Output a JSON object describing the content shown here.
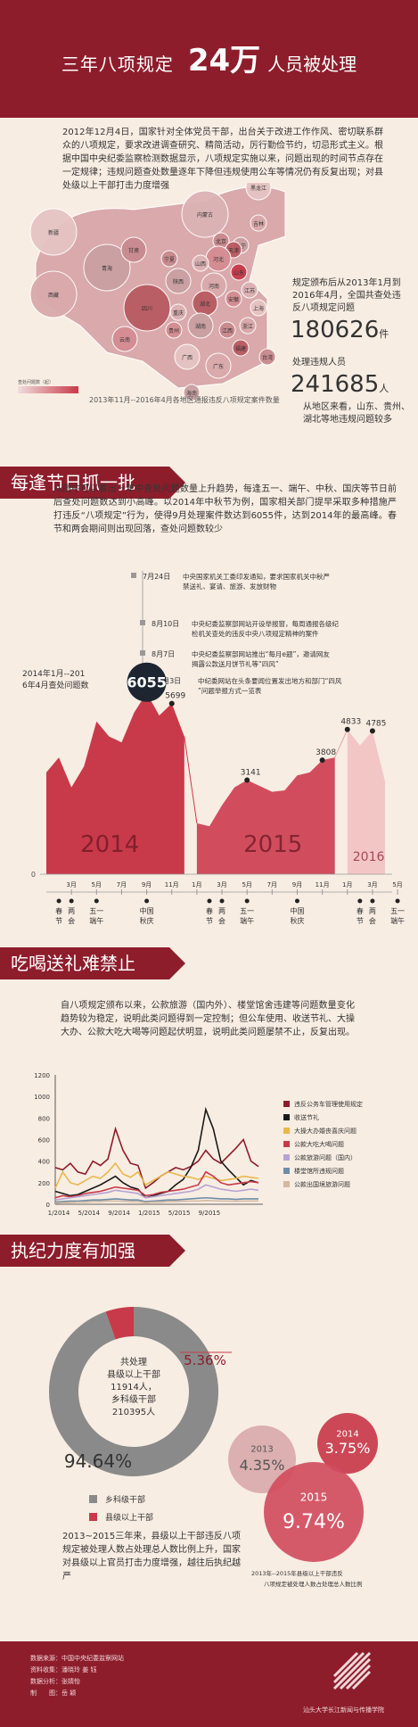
{
  "banner": {
    "title_left": "三年八项规定",
    "title_number": "24万",
    "title_right": "人员被处理"
  },
  "intro": {
    "text": "2012年12月4日，国家针对全体党员干部，出台关于改进工作作风、密切联系群众的八项规定，要求改进调查研究、精简活动，厉行勤俭节约，切忌形式主义。根据中国中央纪委监察检测数据显示，八项规定实施以来，问题出现的时间节点存在一定规律；违规问题查处数量逐年下降但违规使用公车等情况仍有反复出现；对县处级以上干部打击力度增强"
  },
  "map": {
    "legend_label": "查处问题数（起）",
    "caption": "2013年11月--2016年4月各地区通报违反八项规定案件数量",
    "provinces": [
      "新疆",
      "西藏",
      "青海",
      "甘肃",
      "四川",
      "云南",
      "内蒙古",
      "黑龙江",
      "吉林",
      "辽宁",
      "北京",
      "天津",
      "河北",
      "山西",
      "山东",
      "河南",
      "陕西",
      "宁夏",
      "湖北",
      "安徽",
      "江苏",
      "上海",
      "浙江",
      "湖南",
      "江西",
      "福建",
      "贵州",
      "重庆",
      "广西",
      "广东",
      "海南",
      "台湾"
    ],
    "stat1_label": "规定颁布后从2013年1月到2016年4月，全国共查处违反八项规定问题",
    "stat1_value": "180626",
    "stat1_unit": "件",
    "stat2_label": "处理违规人员",
    "stat2_value": "241685",
    "stat2_unit": "人",
    "stat3_label": "从地区来看，山东、贵州、湖北等地违规问题较多"
  },
  "section1": {
    "heading": "每逢节日抓一批",
    "text": "从图中可以看出一年中查处问题数量上升趋势，每逢五一、端午、中秋、国庆等节日前后查处问题数达到小高峰。以2014年中秋节为例，国家相关部门提早采取多种措施严打违反“八项规定”行为，使得9月处理案件数达到6055件，达到2014年的最高峰。春节和两会期间则出现回落，查处问题数较少",
    "events": [
      {
        "date": "7月24日",
        "text": "中央国家机关工委印发通知，要求国家机关中秋严禁送礼、宴请、旅游、发放财物"
      },
      {
        "date": "8月10日",
        "text": "中央纪委监察部网站开设举报窗，每周通报各级纪检机关查处的违反中央八项规定精神的案件"
      },
      {
        "date": "8月7日",
        "text": "中央纪委监察部网站推出“每月e题”，邀请网友揭露公款送月饼节礼等“四风”"
      },
      {
        "date": "9月3日",
        "text": "中纪委网站在头条要闻位置发出地方和部门“四风”问题举报方式一览表"
      }
    ]
  },
  "chart_data": [
    {
      "type": "area",
      "title": "2014年1月--2016年4月查处问题数",
      "x": [
        "2014-01",
        "2014-02",
        "2014-03",
        "2014-04",
        "2014-05",
        "2014-06",
        "2014-07",
        "2014-08",
        "2014-09",
        "2014-10",
        "2014-11",
        "2014-12",
        "2015-01",
        "2015-02",
        "2015-03",
        "2015-04",
        "2015-05",
        "2015-06",
        "2015-07",
        "2015-08",
        "2015-09",
        "2015-10",
        "2015-11",
        "2015-12",
        "2016-01",
        "2016-02",
        "2016-03",
        "2016-04"
      ],
      "values": [
        3400,
        3900,
        2900,
        3600,
        5100,
        4600,
        4400,
        5400,
        6055,
        5300,
        5699,
        4600,
        1700,
        1600,
        2300,
        2900,
        3141,
        2950,
        2750,
        2800,
        3300,
        3400,
        3808,
        3900,
        4833,
        4300,
        4785,
        3100
      ],
      "ylim": [
        0,
        7000
      ],
      "labeled_points": [
        {
          "x": "2014-09",
          "value": "6055"
        },
        {
          "x": "2014-11",
          "value": "5699"
        },
        {
          "x": "2015-05",
          "value": "3141"
        },
        {
          "x": "2015-11",
          "value": "3808"
        },
        {
          "x": "2016-01",
          "value": "4833"
        },
        {
          "x": "2016-03",
          "value": "4785"
        }
      ],
      "year_labels": [
        "2014",
        "2015",
        "2016"
      ],
      "x_ticks": [
        "3月",
        "5月",
        "7月",
        "9月",
        "11月",
        "1月",
        "3月",
        "5月",
        "7月",
        "9月",
        "11月",
        "1月",
        "3月",
        "5月"
      ],
      "y_tick": "0",
      "holiday_labels": [
        {
          "x": "2014-02",
          "label": "春节"
        },
        {
          "x": "2014-03",
          "label": "两会"
        },
        {
          "x": "2014-05",
          "label": "五一端午"
        },
        {
          "x": "2014-09",
          "label": "中国秋庆"
        },
        {
          "x": "2015-02",
          "label": "春节"
        },
        {
          "x": "2015-03",
          "label": "两会"
        },
        {
          "x": "2015-05",
          "label": "五一端午"
        },
        {
          "x": "2015-09",
          "label": "中国秋庆"
        },
        {
          "x": "2016-02",
          "label": "春节"
        },
        {
          "x": "2016-03",
          "label": "两会"
        },
        {
          "x": "2016-05",
          "label": "五一端午"
        }
      ]
    },
    {
      "type": "line",
      "x_ticks": [
        "1/2014",
        "5/2014",
        "9/2014",
        "1/2015",
        "5/2015",
        "9/2015"
      ],
      "yticks": [
        0,
        200,
        400,
        600,
        800,
        1000,
        1200
      ],
      "ylim": [
        0,
        1200
      ],
      "series": [
        {
          "name": "违反公务车管理使用规定",
          "color": "#8e1d2c",
          "values": [
            340,
            320,
            380,
            300,
            280,
            400,
            360,
            420,
            700,
            500,
            380,
            360,
            150,
            200,
            260,
            300,
            340,
            320,
            350,
            400,
            500,
            420,
            380,
            450,
            520,
            600,
            400,
            350
          ]
        },
        {
          "name": "收送节礼",
          "color": "#1a1a1a",
          "values": [
            120,
            100,
            80,
            90,
            120,
            150,
            180,
            220,
            260,
            200,
            160,
            140,
            60,
            80,
            100,
            120,
            180,
            230,
            340,
            500,
            880,
            700,
            400,
            320,
            250,
            180,
            220,
            200
          ]
        },
        {
          "name": "大操大办婚丧喜庆问题",
          "color": "#e8b84a",
          "values": [
            150,
            300,
            200,
            180,
            220,
            260,
            240,
            300,
            380,
            280,
            250,
            300,
            180,
            220,
            260,
            300,
            280,
            260,
            250,
            230,
            260,
            240,
            220,
            230,
            240,
            260,
            250,
            240
          ]
        },
        {
          "name": "公款大吃大喝问题",
          "color": "#c83a4a",
          "values": [
            60,
            80,
            70,
            80,
            100,
            110,
            120,
            140,
            160,
            150,
            140,
            130,
            80,
            90,
            110,
            120,
            130,
            140,
            160,
            180,
            300,
            260,
            200,
            180,
            190,
            200,
            210,
            200
          ]
        },
        {
          "name": "公款旅游问题（国内）",
          "color": "#b8a3d4",
          "values": [
            40,
            50,
            60,
            70,
            80,
            90,
            100,
            110,
            130,
            120,
            110,
            100,
            60,
            70,
            80,
            90,
            100,
            110,
            120,
            140,
            180,
            160,
            140,
            130,
            120,
            130,
            140,
            130
          ]
        },
        {
          "name": "楼堂馆所违规问题",
          "color": "#6d8da8",
          "values": [
            20,
            25,
            30,
            30,
            35,
            40,
            40,
            45,
            50,
            45,
            40,
            40,
            25,
            30,
            35,
            40,
            40,
            45,
            50,
            55,
            60,
            55,
            50,
            50,
            45,
            50,
            50,
            50
          ]
        },
        {
          "name": "公款出国境旅游问题",
          "color": "#d4b8a0",
          "values": [
            10,
            15,
            15,
            20,
            20,
            25,
            25,
            30,
            30,
            28,
            25,
            25,
            15,
            20,
            20,
            25,
            25,
            28,
            30,
            30,
            35,
            32,
            30,
            30,
            28,
            30,
            30,
            30
          ]
        }
      ]
    },
    {
      "type": "pie",
      "slices": [
        {
          "label": "乡科级干部",
          "value": 94.64,
          "text": "94.64%",
          "color": "#8a8a8a"
        },
        {
          "label": "县级以上干部",
          "value": 5.36,
          "text": "5.36%",
          "color": "#c83a4a"
        }
      ],
      "center_text": [
        "共处理",
        "县级以上干部",
        "11914人，",
        "乡科级干部",
        "210395人"
      ]
    },
    {
      "type": "bubble",
      "title": "2013年--2015年县级以上干部违反八项规定被处理人数占处理总人数比例",
      "items": [
        {
          "year": "2013",
          "value": 4.35,
          "text": "4.35%"
        },
        {
          "year": "2014",
          "value": 3.75,
          "text": "3.75%"
        },
        {
          "year": "2015",
          "value": 9.74,
          "text": "9.74%"
        }
      ]
    }
  ],
  "section2": {
    "heading": "吃喝送礼难禁止",
    "text": "自八项规定颁布以来，公款旅游（国内外）、楼堂馆舍违建等问题数量变化趋势较为稳定，说明此类问题得到一定控制；但公车使用、收送节礼、大操大办、公款大吃大喝等问题起伏明显，说明此类问题屡禁不止，反复出现。"
  },
  "section3": {
    "heading": "执纪力度有加强",
    "legend1": "乡科级干部",
    "legend2": "县级以上干部",
    "text": "2013~2015三年来，县级以上干部违反八项规定被处理人数占处理总人数比例上升，国家对县级以上官员打击力度增强，越往后执纪越严",
    "bubble_caption": "2013年--2015年县级以上干部违反八项规定被处理人数占处理总人数比例"
  },
  "footer": {
    "line1": "数据来源：中国中央纪委监察网站",
    "line2": "资料收集：潘晓玲 姜 钰",
    "line3": "数据分析：张婧怡",
    "line4": "制　　图：岳 颖",
    "org": "汕头大学长江新闻与传播学院"
  },
  "colors": {
    "primary": "#8e1d2c",
    "accent": "#c83a4a",
    "background": "#f8ede3",
    "gray": "#8a8a8a"
  }
}
